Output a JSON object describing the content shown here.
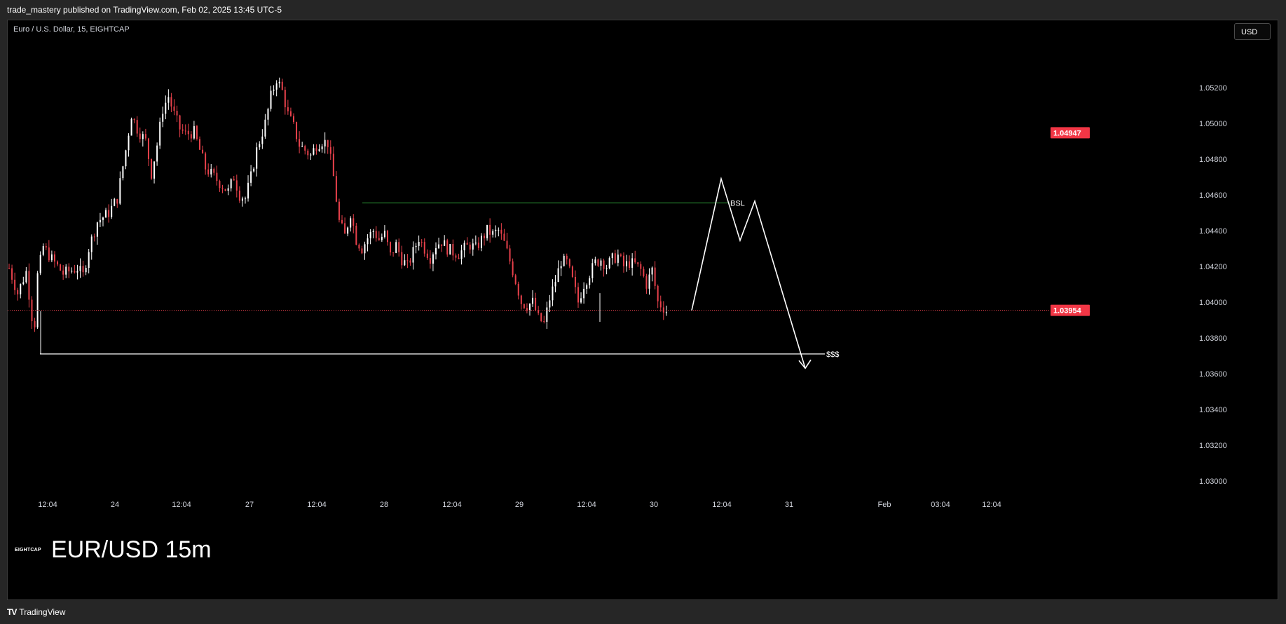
{
  "header": {
    "publisher_line": "trade_mastery published on TradingView.com, Feb 02, 2025 13:45 UTC-5"
  },
  "chart_header": {
    "symbol_line": "Euro / U.S. Dollar, 15, EIGHTCAP",
    "currency_button": "USD"
  },
  "watermark": {
    "logo_text": "EIGHTCAP",
    "title": "EUR/USD 15m"
  },
  "footer": {
    "logo_icon": "tradingview-logo-icon",
    "brand": "TradingView"
  },
  "colors": {
    "background": "#000000",
    "up_candle": "#ffffff",
    "down_candle": "#e8414b",
    "price_badge": "#f23645",
    "bsl_line": "#2e9e3a",
    "annotation": "#ffffff"
  },
  "chart_data": {
    "type": "candlestick",
    "title": "",
    "ylim": [
      1.0285,
      1.0545
    ],
    "y_ticks": [
      "1.05200",
      "1.05000",
      "1.04800",
      "1.04600",
      "1.04400",
      "1.04200",
      "1.04000",
      "1.03800",
      "1.03600",
      "1.03400",
      "1.03200",
      "1.03000"
    ],
    "y_tick_values": [
      1.052,
      1.05,
      1.048,
      1.046,
      1.044,
      1.042,
      1.04,
      1.038,
      1.036,
      1.034,
      1.032,
      1.03
    ],
    "x_ticks": [
      "12:04",
      "24",
      "12:04",
      "27",
      "12:04",
      "28",
      "12:04",
      "29",
      "12:04",
      "30",
      "12:04",
      "31",
      "Feb",
      "03:04",
      "12:04"
    ],
    "price_badges": [
      {
        "label": "1.04947",
        "value": 1.04947
      },
      {
        "label": "1.03954",
        "value": 1.03954
      }
    ],
    "current_price": 1.03954,
    "price_anchors": [
      [
        0,
        1.0419
      ],
      [
        3,
        1.0405
      ],
      [
        6,
        1.0417
      ],
      [
        8,
        1.0392
      ],
      [
        9,
        1.0388
      ],
      [
        10,
        1.0415
      ],
      [
        12,
        1.0431
      ],
      [
        15,
        1.0424
      ],
      [
        19,
        1.0416
      ],
      [
        24,
        1.0419
      ],
      [
        26,
        1.0415
      ],
      [
        28,
        1.043
      ],
      [
        31,
        1.0445
      ],
      [
        35,
        1.045
      ],
      [
        38,
        1.0458
      ],
      [
        41,
        1.0485
      ],
      [
        43,
        1.0505
      ],
      [
        45,
        1.0497
      ],
      [
        48,
        1.049
      ],
      [
        50,
        1.0472
      ],
      [
        52,
        1.0488
      ],
      [
        54,
        1.0508
      ],
      [
        56,
        1.0515
      ],
      [
        58,
        1.0505
      ],
      [
        60,
        1.0497
      ],
      [
        62,
        1.0494
      ],
      [
        65,
        1.0495
      ],
      [
        67,
        1.0485
      ],
      [
        69,
        1.0475
      ],
      [
        72,
        1.047
      ],
      [
        75,
        1.0465
      ],
      [
        77,
        1.0462
      ],
      [
        79,
        1.047
      ],
      [
        81,
        1.046
      ],
      [
        83,
        1.0458
      ],
      [
        85,
        1.047
      ],
      [
        87,
        1.0485
      ],
      [
        90,
        1.05
      ],
      [
        92,
        1.0515
      ],
      [
        94,
        1.0525
      ],
      [
        96,
        1.0518
      ],
      [
        98,
        1.0505
      ],
      [
        100,
        1.0498
      ],
      [
        102,
        1.0488
      ],
      [
        104,
        1.0485
      ],
      [
        106,
        1.0482
      ],
      [
        108,
        1.0488
      ],
      [
        110,
        1.049
      ],
      [
        112,
        1.0489
      ],
      [
        114,
        1.047
      ],
      [
        116,
        1.0445
      ],
      [
        118,
        1.0437
      ],
      [
        120,
        1.045
      ],
      [
        122,
        1.0435
      ],
      [
        124,
        1.043
      ],
      [
        126,
        1.0436
      ],
      [
        128,
        1.044
      ],
      [
        130,
        1.0435
      ],
      [
        132,
        1.0438
      ],
      [
        134,
        1.0426
      ],
      [
        136,
        1.0432
      ],
      [
        138,
        1.0424
      ],
      [
        140,
        1.042
      ],
      [
        142,
        1.0428
      ],
      [
        144,
        1.0436
      ],
      [
        146,
        1.043
      ],
      [
        148,
        1.0425
      ],
      [
        150,
        1.0432
      ],
      [
        152,
        1.0434
      ],
      [
        154,
        1.043
      ],
      [
        156,
        1.0428
      ],
      [
        158,
        1.0427
      ],
      [
        160,
        1.043
      ],
      [
        162,
        1.0432
      ],
      [
        164,
        1.043
      ],
      [
        166,
        1.0435
      ],
      [
        168,
        1.044
      ],
      [
        170,
        1.0438
      ],
      [
        172,
        1.044
      ],
      [
        174,
        1.0433
      ],
      [
        176,
        1.0423
      ],
      [
        178,
        1.0412
      ],
      [
        180,
        1.04
      ],
      [
        182,
        1.0398
      ],
      [
        184,
        1.04
      ],
      [
        186,
        1.0391
      ],
      [
        188,
        1.0388
      ],
      [
        190,
        1.0402
      ],
      [
        192,
        1.0412
      ],
      [
        194,
        1.0423
      ],
      [
        196,
        1.0422
      ],
      [
        198,
        1.0412
      ],
      [
        200,
        1.04
      ],
      [
        202,
        1.041
      ],
      [
        204,
        1.0416
      ],
      [
        206,
        1.0422
      ],
      [
        208,
        1.0424
      ],
      [
        210,
        1.042
      ],
      [
        212,
        1.0424
      ],
      [
        214,
        1.0426
      ],
      [
        216,
        1.042
      ],
      [
        218,
        1.0422
      ],
      [
        220,
        1.0421
      ],
      [
        222,
        1.0418
      ],
      [
        224,
        1.041
      ],
      [
        226,
        1.0418
      ],
      [
        228,
        1.04
      ],
      [
        230,
        1.0397
      ],
      [
        231,
        1.0395
      ]
    ],
    "annotations": {
      "bsl_line": {
        "label": "BSL",
        "price": 1.04555
      },
      "liquidity_line": {
        "label": "$$$",
        "price": 1.0371
      },
      "projection_path_prices": [
        1.03954,
        1.0469,
        1.04345,
        1.04565,
        1.0363
      ]
    }
  }
}
